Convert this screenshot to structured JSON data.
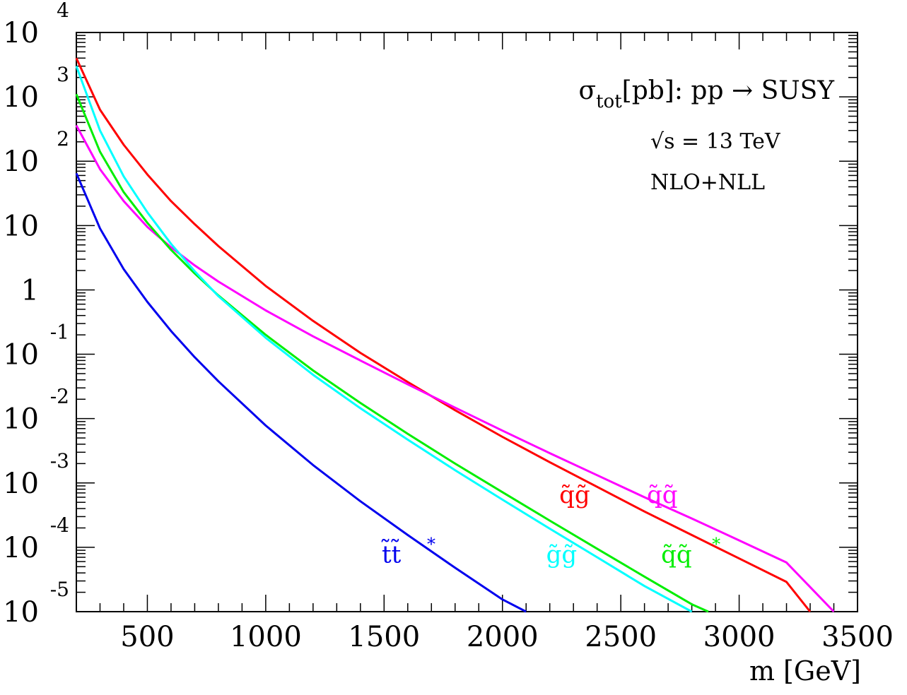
{
  "chart_data": {
    "type": "line",
    "title": "σtot[pb]: pp → SUSY",
    "title_parts": {
      "sigma": "σ",
      "sub": "tot",
      "rest": "[pb]: pp → SUSY"
    },
    "annotations": [
      "√s = 13 TeV",
      "NLO+NLL"
    ],
    "xlabel": "m [GeV]",
    "ylabel": "",
    "xlim": [
      200,
      3500
    ],
    "ylim": [
      1e-05,
      10000.0
    ],
    "yscale": "log",
    "grid": false,
    "x_ticks": [
      500,
      1000,
      1500,
      2000,
      2500,
      3000,
      3500
    ],
    "x_tick_labels": [
      "500",
      "1000",
      "1500",
      "2000",
      "2500",
      "3000",
      "3500"
    ],
    "y_tick_labels": [
      {
        "value": 10000,
        "base": "10",
        "exp": "4"
      },
      {
        "value": 1000,
        "base": "10",
        "exp": "3"
      },
      {
        "value": 100,
        "base": "10",
        "exp": "2"
      },
      {
        "value": 10,
        "base": "10",
        "exp": ""
      },
      {
        "value": 1,
        "base": "1",
        "exp": ""
      },
      {
        "value": 0.1,
        "base": "10",
        "exp": "-1"
      },
      {
        "value": 0.01,
        "base": "10",
        "exp": "-2"
      },
      {
        "value": 0.001,
        "base": "10",
        "exp": "-3"
      },
      {
        "value": 0.0001,
        "base": "10",
        "exp": "-4"
      },
      {
        "value": 1e-05,
        "base": "10",
        "exp": "-5"
      }
    ],
    "series": [
      {
        "name": "q̃g̃",
        "color": "#ff0000",
        "label_x": 2240,
        "label_y": 0.00049,
        "star": "",
        "x": [
          200,
          300,
          400,
          500,
          600,
          700,
          800,
          1000,
          1200,
          1400,
          1600,
          1800,
          2000,
          2200,
          2400,
          2600,
          2800,
          3000,
          3200,
          3300
        ],
        "y": [
          4000,
          630,
          180,
          62,
          24,
          10.5,
          4.8,
          1.15,
          0.33,
          0.105,
          0.037,
          0.0135,
          0.0052,
          0.0021,
          0.00087,
          0.00036,
          0.000155,
          6.7e-05,
          2.9e-05,
          1e-05
        ]
      },
      {
        "name": "q̃q̃",
        "color": "#ff00ff",
        "label_x": 2610,
        "label_y": 0.00049,
        "star": "",
        "x": [
          200,
          300,
          400,
          500,
          600,
          700,
          800,
          1000,
          1200,
          1400,
          1600,
          1800,
          2000,
          2200,
          2400,
          2600,
          2800,
          3000,
          3200,
          3400
        ],
        "y": [
          360,
          75,
          24,
          9.5,
          4.6,
          2.4,
          1.35,
          0.48,
          0.19,
          0.08,
          0.034,
          0.0148,
          0.0065,
          0.0029,
          0.00132,
          0.0006,
          0.00028,
          0.000128,
          5.8e-05,
          1e-05
        ]
      },
      {
        "name": "q̃q̃",
        "color": "#00ee00",
        "label_x": 2670,
        "label_y": 5.8e-05,
        "star": "*",
        "x": [
          200,
          300,
          400,
          500,
          600,
          700,
          800,
          1000,
          1200,
          1400,
          1600,
          1800,
          2000,
          2200,
          2400,
          2600,
          2800,
          2870
        ],
        "y": [
          1100,
          140,
          33,
          11,
          4.2,
          1.8,
          0.82,
          0.2,
          0.056,
          0.0175,
          0.0058,
          0.002,
          0.00072,
          0.00026,
          9.5e-05,
          3.5e-05,
          1.3e-05,
          1e-05
        ]
      },
      {
        "name": "g̃g̃",
        "color": "#00ffff",
        "label_x": 2185,
        "label_y": 5.8e-05,
        "star": "",
        "x": [
          200,
          300,
          400,
          500,
          600,
          700,
          800,
          1000,
          1200,
          1400,
          1600,
          1800,
          2000,
          2200,
          2400,
          2600,
          2800
        ],
        "y": [
          3000,
          300,
          58,
          16,
          5.2,
          1.95,
          0.8,
          0.18,
          0.048,
          0.0145,
          0.0047,
          0.00158,
          0.00055,
          0.000195,
          7e-05,
          2.5e-05,
          1e-05
        ]
      },
      {
        "name": "t̃t̃",
        "color": "#0000ee",
        "label_x": 1490,
        "label_y": 5.8e-05,
        "star": "*",
        "x": [
          200,
          300,
          400,
          500,
          600,
          700,
          800,
          1000,
          1200,
          1400,
          1600,
          1800,
          2000,
          2100
        ],
        "y": [
          65,
          9,
          2.1,
          0.65,
          0.23,
          0.09,
          0.038,
          0.0078,
          0.0019,
          0.00052,
          0.000155,
          4.8e-05,
          1.55e-05,
          1e-05
        ]
      }
    ]
  }
}
